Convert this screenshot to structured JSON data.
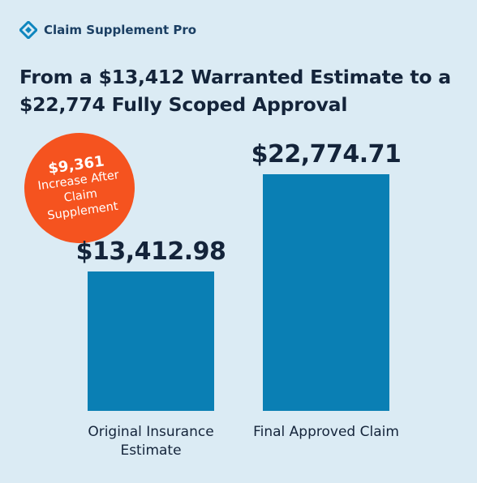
{
  "brand": "Claim Supplement Pro",
  "chart_data": {
    "type": "bar",
    "title": "From a $13,412 Warranted Estimate to a $22,774 Fully Scoped Approval",
    "categories": [
      "Original Insurance Estimate",
      "Final Approved Claim"
    ],
    "values": [
      13412.98,
      22774.71
    ],
    "value_labels": [
      "$13,412.98",
      "$22,774.71"
    ],
    "color": "#0a7fb4",
    "annotation": {
      "value": "$9,361",
      "text": "Increase After Claim Supplement"
    }
  }
}
